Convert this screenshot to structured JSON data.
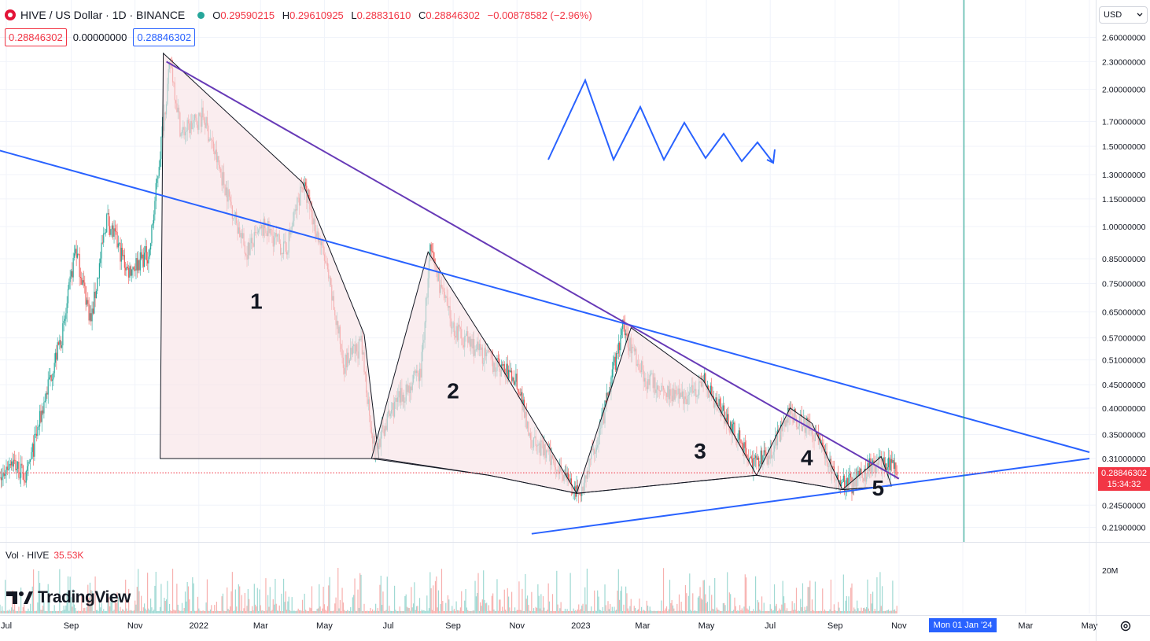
{
  "header": {
    "symbol": "HIVE / US Dollar · 1D · BINANCE",
    "open_label": "O",
    "open": "0.29590215",
    "high_label": "H",
    "high": "0.29610925",
    "low_label": "L",
    "low": "0.28831610",
    "close_label": "C",
    "close": "0.28846302",
    "change": "−0.00878582 (−2.96%)"
  },
  "price_boxes": {
    "sell": "0.28846302",
    "spread": "0.00000000",
    "buy": "0.28846302"
  },
  "currency": {
    "selected": "USD",
    "icon": "chevron-down-icon"
  },
  "last_price": {
    "value": "0.28846302",
    "countdown": "15:34:32"
  },
  "volume": {
    "label": "Vol · HIVE",
    "value": "35.53K",
    "axis_label": "20M"
  },
  "logo": {
    "text": "TradingView",
    "icon": "tradingview-logo-icon"
  },
  "crosshair_date": "Mon 01 Jan '24",
  "colors": {
    "up": "#26a69a",
    "down": "#ef5350",
    "trendline_blue": "#2962ff",
    "trendline_purple": "#673ab7",
    "pattern_fill": "#f8e4e6",
    "last_price": "#f23645"
  },
  "wave_labels": [
    "1",
    "2",
    "3",
    "4",
    "5"
  ],
  "chart_data": {
    "type": "candlestick",
    "title": "HIVE / US Dollar · 1D · BINANCE",
    "y_scale": "log",
    "y_ticks": [
      2.6,
      2.3,
      2.0,
      1.7,
      1.5,
      1.3,
      1.15,
      1.0,
      0.85,
      0.75,
      0.65,
      0.57,
      0.51,
      0.45,
      0.4,
      0.35,
      0.31,
      0.245,
      0.219
    ],
    "y_tick_labels": [
      "2.60000000",
      "2.30000000",
      "2.00000000",
      "1.70000000",
      "1.50000000",
      "1.30000000",
      "1.15000000",
      "1.00000000",
      "0.85000000",
      "0.75000000",
      "0.65000000",
      "0.57000000",
      "0.51000000",
      "0.45000000",
      "0.40000000",
      "0.35000000",
      "0.31000000",
      "0.24500000",
      "0.21900000"
    ],
    "x_tick_labels": [
      "Jul",
      "Sep",
      "Nov",
      "2022",
      "Mar",
      "May",
      "Jul",
      "Sep",
      "Nov",
      "2023",
      "Mar",
      "May",
      "Jul",
      "Sep",
      "Nov",
      "Mon 01 Jan '24",
      "Mar",
      "May"
    ],
    "x_ticks": [
      "2021-07-01",
      "2021-09-01",
      "2021-11-01",
      "2022-01-01",
      "2022-03-01",
      "2022-05-01",
      "2022-07-01",
      "2022-09-01",
      "2022-11-01",
      "2023-01-01",
      "2023-03-01",
      "2023-05-01",
      "2023-07-01",
      "2023-09-01",
      "2023-11-01",
      "2024-01-01",
      "2024-03-01",
      "2024-05-01"
    ],
    "price_path": [
      [
        "2021-06-20",
        0.26
      ],
      [
        "2021-07-05",
        0.31
      ],
      [
        "2021-07-20",
        0.28
      ],
      [
        "2021-08-10",
        0.45
      ],
      [
        "2021-08-25",
        0.6
      ],
      [
        "2021-09-05",
        0.9
      ],
      [
        "2021-09-20",
        0.62
      ],
      [
        "2021-10-05",
        1.05
      ],
      [
        "2021-10-25",
        0.8
      ],
      [
        "2021-11-15",
        0.88
      ],
      [
        "2021-11-28",
        1.7
      ],
      [
        "2021-12-05",
        2.3
      ],
      [
        "2021-12-15",
        1.6
      ],
      [
        "2022-01-05",
        1.75
      ],
      [
        "2022-01-25",
        1.25
      ],
      [
        "2022-02-15",
        0.88
      ],
      [
        "2022-03-05",
        1.0
      ],
      [
        "2022-03-25",
        0.88
      ],
      [
        "2022-04-10",
        1.25
      ],
      [
        "2022-05-01",
        0.85
      ],
      [
        "2022-05-20",
        0.5
      ],
      [
        "2022-06-05",
        0.55
      ],
      [
        "2022-06-18",
        0.32
      ],
      [
        "2022-07-05",
        0.4
      ],
      [
        "2022-08-01",
        0.48
      ],
      [
        "2022-08-10",
        0.88
      ],
      [
        "2022-09-01",
        0.6
      ],
      [
        "2022-10-01",
        0.52
      ],
      [
        "2022-11-01",
        0.46
      ],
      [
        "2022-11-15",
        0.34
      ],
      [
        "2022-12-10",
        0.3
      ],
      [
        "2022-12-30",
        0.255
      ],
      [
        "2023-01-20",
        0.36
      ],
      [
        "2023-02-10",
        0.6
      ],
      [
        "2023-03-05",
        0.46
      ],
      [
        "2023-04-10",
        0.42
      ],
      [
        "2023-04-28",
        0.46
      ],
      [
        "2023-05-20",
        0.38
      ],
      [
        "2023-06-15",
        0.3
      ],
      [
        "2023-07-01",
        0.32
      ],
      [
        "2023-07-20",
        0.39
      ],
      [
        "2023-08-15",
        0.35
      ],
      [
        "2023-09-01",
        0.28
      ],
      [
        "2023-09-20",
        0.272
      ],
      [
        "2023-10-05",
        0.3
      ],
      [
        "2023-10-25",
        0.305
      ],
      [
        "2023-10-30",
        0.288
      ]
    ],
    "volume_max_label": "20M",
    "annotations": [
      {
        "type": "trendline",
        "color": "#2962ff",
        "from": [
          "2021-06-01",
          1.52
        ],
        "to": [
          "2024-05-01",
          0.32
        ]
      },
      {
        "type": "trendline",
        "color": "#673ab7",
        "from": [
          "2021-12-01",
          2.3
        ],
        "to": [
          "2023-11-01",
          0.28
        ]
      },
      {
        "type": "trendline",
        "color": "#2962ff",
        "from": [
          "2022-11-15",
          0.212
        ],
        "to": [
          "2024-05-01",
          0.31
        ]
      }
    ],
    "last_price": 0.28846302
  }
}
